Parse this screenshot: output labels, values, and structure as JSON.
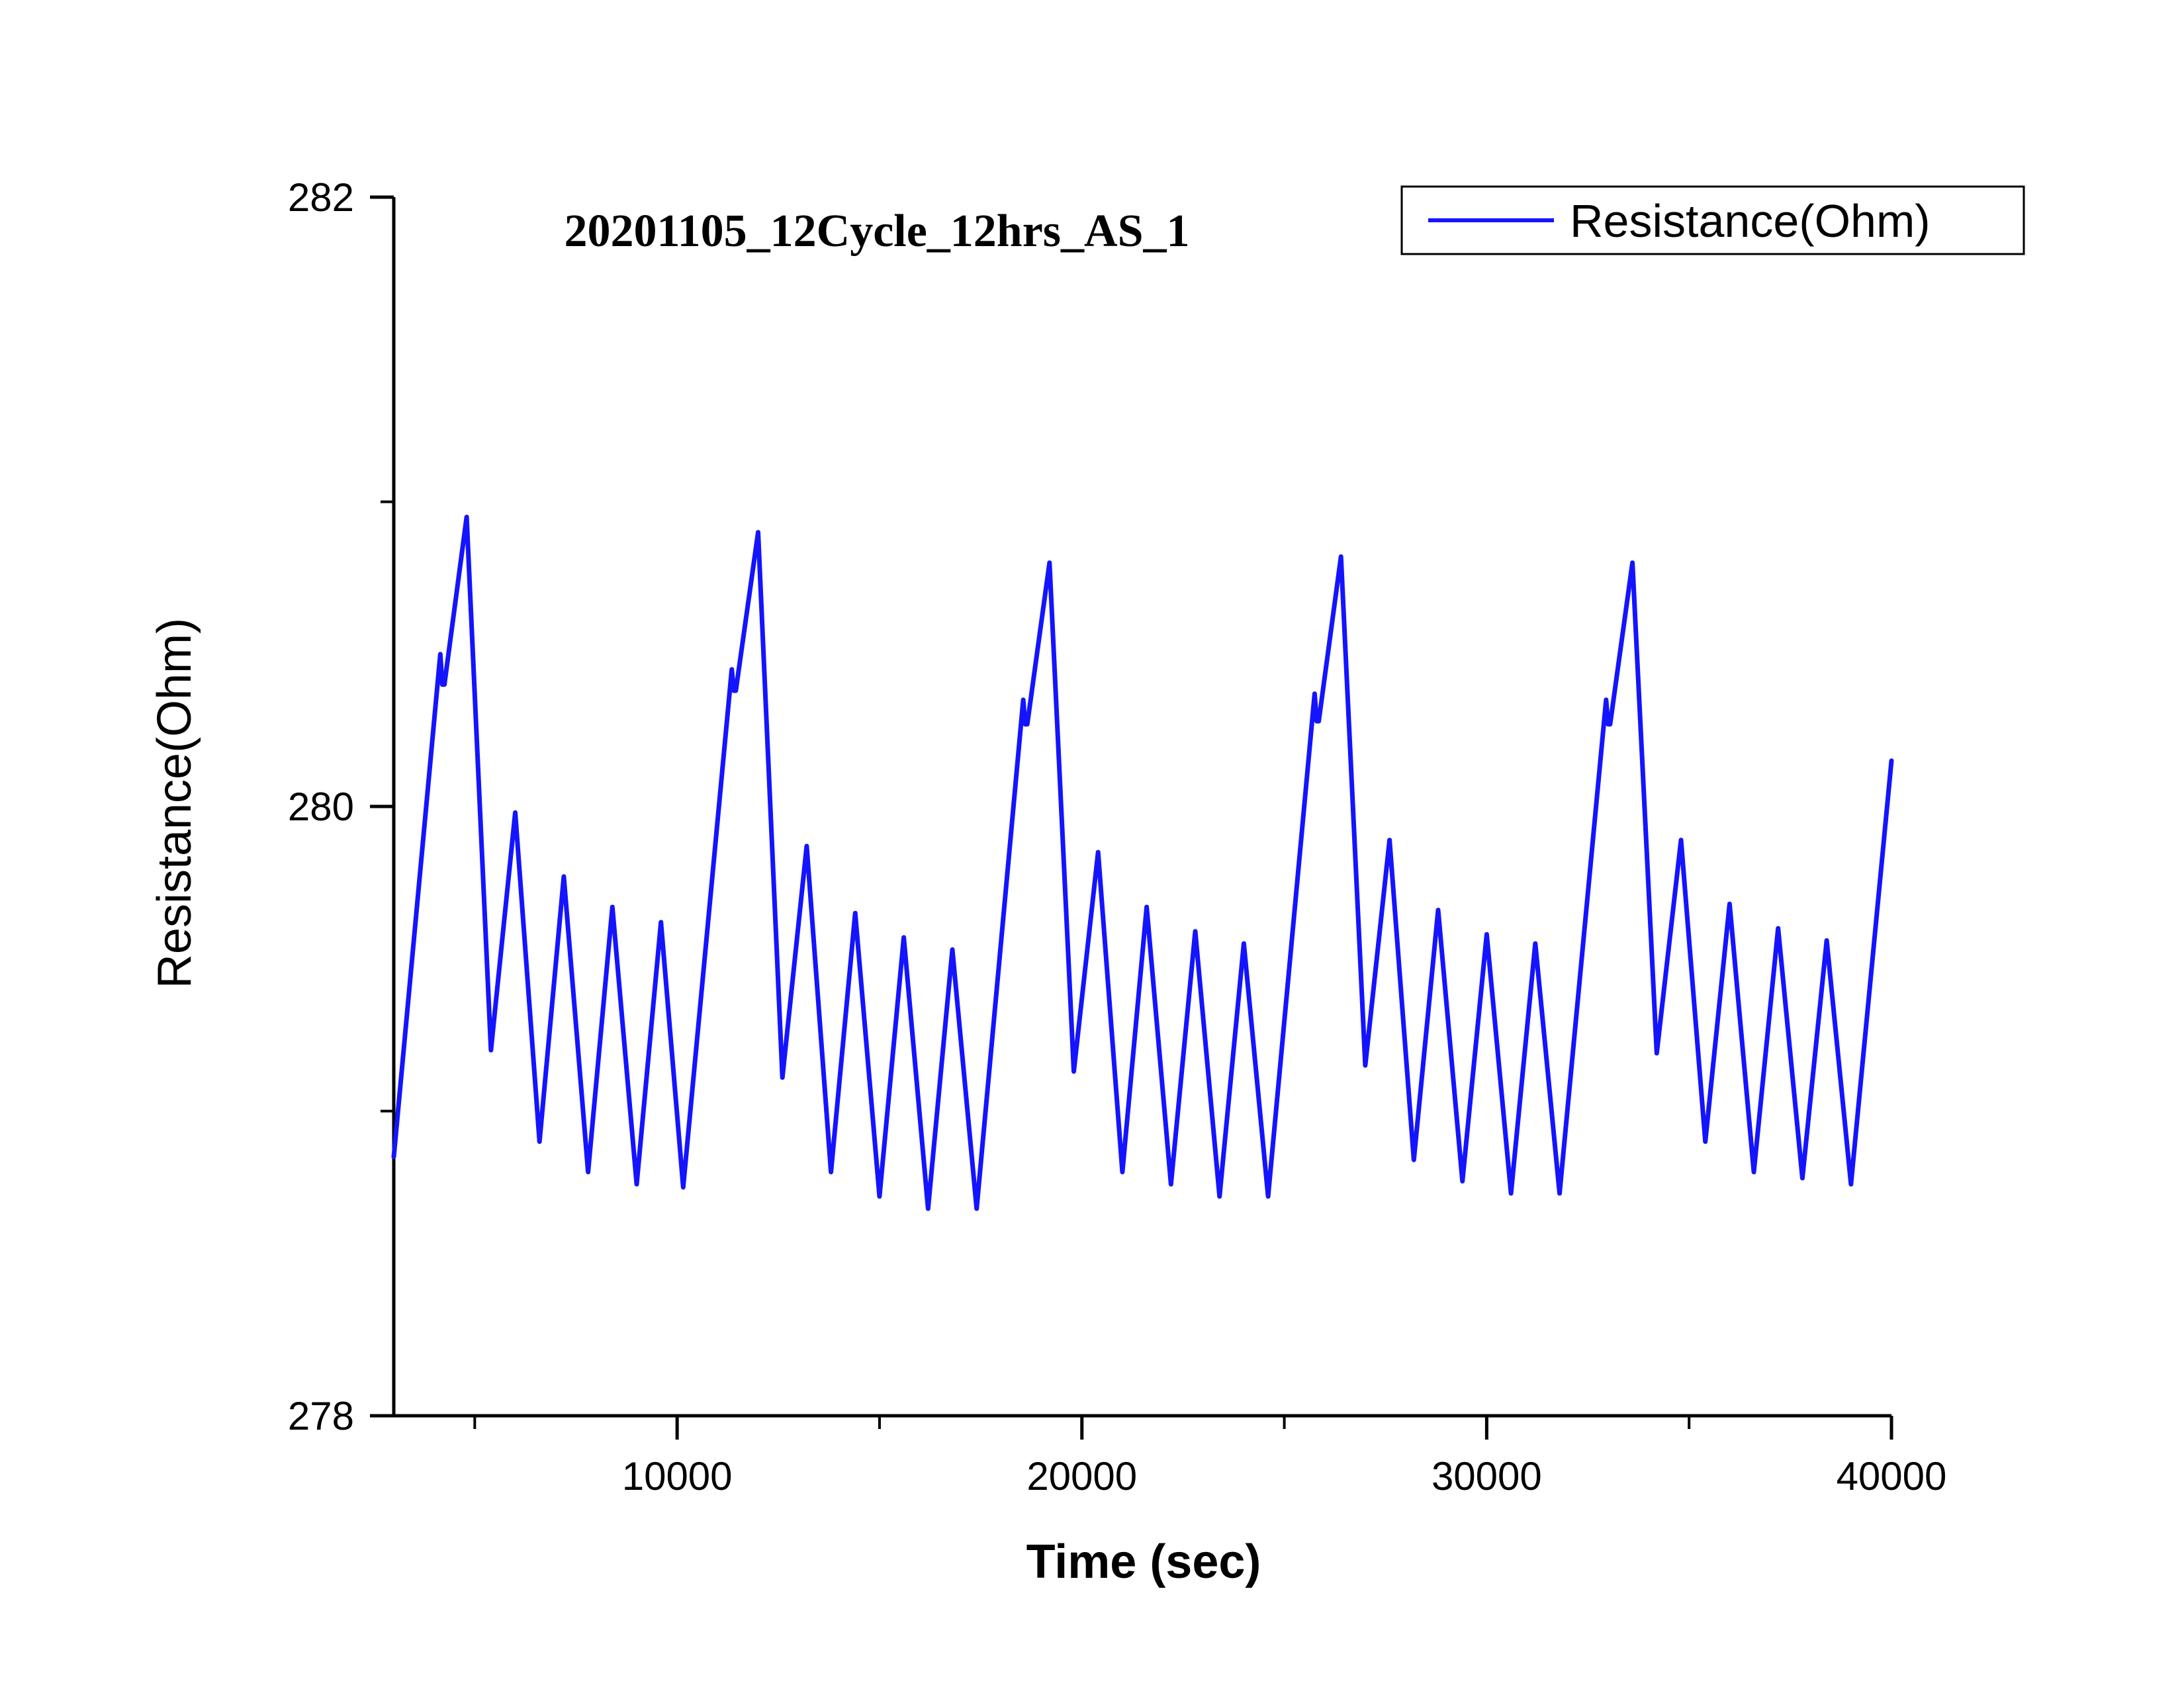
{
  "chart_data": {
    "type": "line",
    "title": "20201105_12Cycle_12hrs_AS_1",
    "xlabel": "Time (sec)",
    "ylabel": "Resistance(Ohm)",
    "xlim": [
      3000,
      40000
    ],
    "ylim": [
      278,
      282
    ],
    "x_ticks": [
      10000,
      20000,
      30000,
      40000
    ],
    "x_tick_labels": [
      "10000",
      "20000",
      "30000",
      "40000"
    ],
    "y_ticks": [
      278,
      280,
      282
    ],
    "y_tick_labels": [
      "278",
      "280",
      "282"
    ],
    "x_minor_ticks": [
      5000,
      15000,
      25000,
      35000
    ],
    "y_minor_ticks": [
      279,
      281
    ],
    "legend_position": "top-right",
    "grid": false,
    "series": [
      {
        "name": "Resistance(Ohm)",
        "color": "#1414ff",
        "points": [
          [
            3000,
            278.85
          ],
          [
            4150,
            280.5
          ],
          [
            4200,
            280.4
          ],
          [
            4250,
            280.4
          ],
          [
            4800,
            280.95
          ],
          [
            5400,
            279.2
          ],
          [
            6000,
            279.98
          ],
          [
            6600,
            278.9
          ],
          [
            7200,
            279.77
          ],
          [
            7800,
            278.8
          ],
          [
            8400,
            279.67
          ],
          [
            9000,
            278.76
          ],
          [
            9600,
            279.62
          ],
          [
            10150,
            278.75
          ],
          [
            11350,
            280.45
          ],
          [
            11400,
            280.38
          ],
          [
            11450,
            280.38
          ],
          [
            12000,
            280.9
          ],
          [
            12600,
            279.11
          ],
          [
            13200,
            279.87
          ],
          [
            13800,
            278.8
          ],
          [
            14400,
            279.65
          ],
          [
            15000,
            278.72
          ],
          [
            15600,
            279.57
          ],
          [
            16200,
            278.68
          ],
          [
            16800,
            279.53
          ],
          [
            17400,
            278.68
          ],
          [
            18550,
            280.35
          ],
          [
            18600,
            280.27
          ],
          [
            18650,
            280.27
          ],
          [
            19200,
            280.8
          ],
          [
            19800,
            279.13
          ],
          [
            20400,
            279.85
          ],
          [
            21000,
            278.8
          ],
          [
            21600,
            279.67
          ],
          [
            22200,
            278.76
          ],
          [
            22800,
            279.59
          ],
          [
            23400,
            278.72
          ],
          [
            24000,
            279.55
          ],
          [
            24600,
            278.72
          ],
          [
            25750,
            280.37
          ],
          [
            25800,
            280.28
          ],
          [
            25850,
            280.28
          ],
          [
            26400,
            280.82
          ],
          [
            27000,
            279.15
          ],
          [
            27600,
            279.89
          ],
          [
            28200,
            278.84
          ],
          [
            28800,
            279.66
          ],
          [
            29400,
            278.77
          ],
          [
            30000,
            279.58
          ],
          [
            30600,
            278.73
          ],
          [
            31200,
            279.55
          ],
          [
            31800,
            278.73
          ],
          [
            32950,
            280.35
          ],
          [
            33000,
            280.27
          ],
          [
            33050,
            280.27
          ],
          [
            33600,
            280.8
          ],
          [
            34200,
            279.19
          ],
          [
            34800,
            279.89
          ],
          [
            35400,
            278.9
          ],
          [
            36000,
            279.68
          ],
          [
            36600,
            278.8
          ],
          [
            37200,
            279.6
          ],
          [
            37800,
            278.78
          ],
          [
            38400,
            279.56
          ],
          [
            39000,
            278.76
          ],
          [
            40000,
            280.15
          ]
        ]
      }
    ]
  }
}
